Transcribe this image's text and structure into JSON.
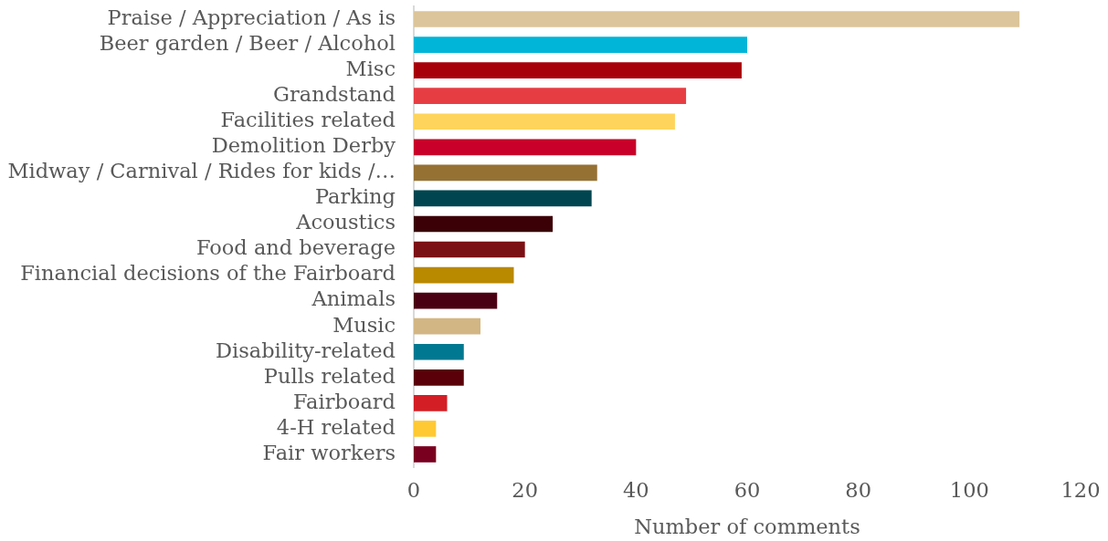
{
  "chart_data": {
    "type": "bar",
    "orientation": "horizontal",
    "xlabel": "Number of comments",
    "categories": [
      "Praise / Appreciation / As is",
      "Beer garden / Beer / Alcohol",
      "Misc",
      "Grandstand",
      "Facilities related",
      "Demolition Derby",
      "Midway / Carnival / Rides for kids /…",
      "Parking",
      "Acoustics",
      "Food and beverage",
      "Financial decisions of the Fairboard",
      "Animals",
      "Music",
      "Disability-related",
      "Pulls related",
      "Fairboard",
      "4-H related",
      "Fair workers"
    ],
    "values": [
      109,
      60,
      59,
      49,
      47,
      40,
      33,
      32,
      25,
      20,
      18,
      15,
      12,
      9,
      9,
      6,
      4,
      4
    ],
    "colors": [
      "#dcc59a",
      "#00b5d8",
      "#a8000b",
      "#e63d43",
      "#ffd45c",
      "#c8002a",
      "#957134",
      "#004550",
      "#3a0006",
      "#7b1015",
      "#b98900",
      "#4a0012",
      "#d2b683",
      "#007891",
      "#5a0008",
      "#d31e25",
      "#ffc934",
      "#7a0020"
    ],
    "xlim": [
      0,
      120
    ],
    "xticks": [
      0,
      20,
      40,
      60,
      80,
      100,
      120
    ]
  }
}
